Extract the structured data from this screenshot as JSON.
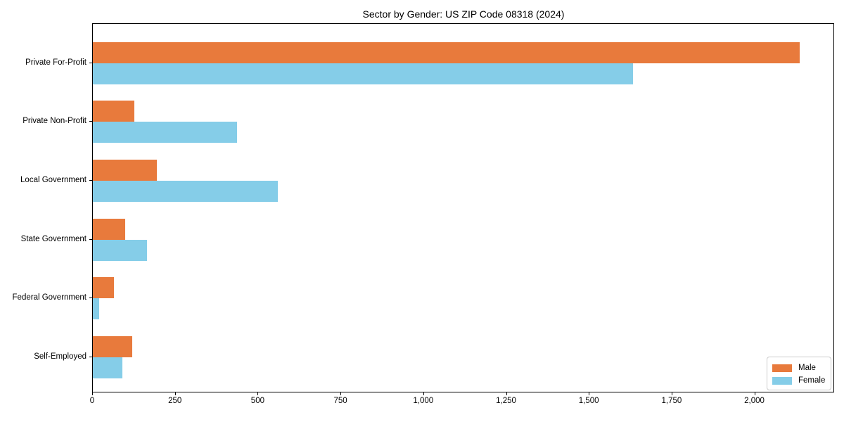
{
  "chart_data": {
    "type": "bar",
    "orientation": "horizontal",
    "title": "Sector by Gender: US ZIP Code 08318 (2024)",
    "categories": [
      "Private For-Profit",
      "Private Non-Profit",
      "Local Government",
      "State Government",
      "Federal Government",
      "Self-Employed"
    ],
    "series": [
      {
        "name": "Male",
        "color": "#e87a3c",
        "values": [
          2134,
          125,
          194,
          98,
          63,
          118
        ]
      },
      {
        "name": "Female",
        "color": "#85cde8",
        "values": [
          1632,
          435,
          559,
          163,
          18,
          89
        ]
      }
    ],
    "xlim": [
      0,
      2241
    ],
    "xticks": [
      0,
      250,
      500,
      750,
      1000,
      1250,
      1500,
      1750,
      2000
    ],
    "xtick_labels": [
      "0",
      "250",
      "500",
      "750",
      "1,000",
      "1,250",
      "1,500",
      "1,750",
      "2,000"
    ],
    "xlabel": "",
    "ylabel": "",
    "grid": false,
    "legend_position": "lower right",
    "background_color": "#ffffff",
    "spine_color": "#000000"
  }
}
